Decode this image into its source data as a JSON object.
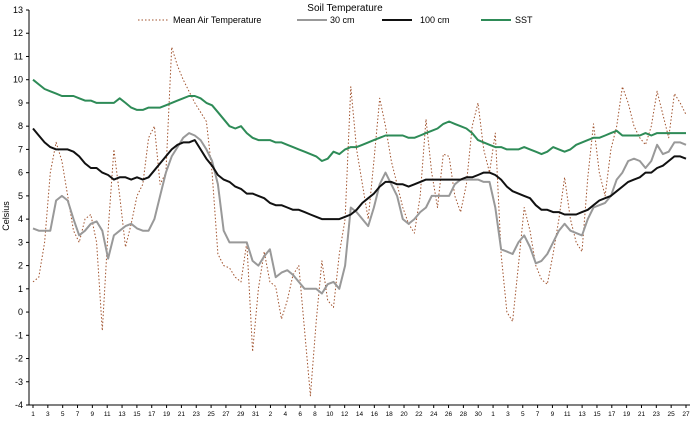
{
  "chart_data": {
    "type": "line",
    "title": "Soil Temperature",
    "xlabel": "",
    "ylabel": "Celsius",
    "ylim": [
      -4,
      13
    ],
    "yticks": [
      -4,
      -3,
      -2,
      -1,
      0,
      1,
      2,
      3,
      4,
      5,
      6,
      7,
      8,
      9,
      10,
      11,
      12,
      13
    ],
    "grid": false,
    "legend_position": "top",
    "x_tick_labels": [
      "1",
      "3",
      "5",
      "7",
      "9",
      "11",
      "13",
      "15",
      "17",
      "19",
      "21",
      "23",
      "25",
      "27",
      "29",
      "31",
      "2",
      "4",
      "6",
      "8",
      "10",
      "12",
      "14",
      "16",
      "18",
      "20",
      "22",
      "24",
      "26",
      "28",
      "30",
      "1",
      "3",
      "5",
      "7",
      "9",
      "11",
      "13",
      "15",
      "17",
      "19",
      "21",
      "23",
      "25",
      "27"
    ],
    "series": [
      {
        "name": "Mean Air Temperature",
        "color": "#a0522d",
        "style": "dotted",
        "values": [
          1.3,
          1.5,
          3.0,
          6.0,
          7.3,
          6.5,
          5.0,
          3.5,
          3.0,
          4.0,
          4.2,
          3.0,
          -0.8,
          3.5,
          7.0,
          5.0,
          2.8,
          3.8,
          5.0,
          5.5,
          7.5,
          8.0,
          5.5,
          6.0,
          11.4,
          10.6,
          10.0,
          9.5,
          9.0,
          8.6,
          8.2,
          6.0,
          2.5,
          2.0,
          1.9,
          1.5,
          1.3,
          3.0,
          -1.7,
          1.0,
          2.6,
          1.3,
          1.1,
          -0.3,
          0.5,
          1.6,
          2.0,
          -0.8,
          -3.6,
          -0.4,
          2.2,
          0.5,
          0.2,
          2.5,
          4.0,
          9.7,
          7.0,
          5.5,
          4.0,
          6.5,
          9.2,
          8.0,
          6.5,
          5.5,
          4.5,
          3.8,
          3.4,
          5.0,
          8.3,
          6.0,
          4.5,
          6.8,
          6.7,
          5.0,
          4.3,
          5.5,
          8.0,
          9.0,
          7.0,
          6.0,
          7.7,
          2.5,
          0.0,
          -0.4,
          2.0,
          4.5,
          3.5,
          2.0,
          1.4,
          1.2,
          2.5,
          4.0,
          5.8,
          4.0,
          3.0,
          2.6,
          5.8,
          8.1,
          6.0,
          5.0,
          7.0,
          8.0,
          9.7,
          9.0,
          8.0,
          7.5,
          7.2,
          8.0,
          9.5,
          8.5,
          7.5,
          9.4,
          9.0,
          8.5
        ]
      },
      {
        "name": "30 cm",
        "color": "#999999",
        "style": "solid",
        "values": [
          3.6,
          3.5,
          3.5,
          3.5,
          4.8,
          5.0,
          4.8,
          4.0,
          3.3,
          3.5,
          3.8,
          3.9,
          3.5,
          2.3,
          3.3,
          3.5,
          3.7,
          3.8,
          3.6,
          3.5,
          3.5,
          4.0,
          5.0,
          6.0,
          6.7,
          7.1,
          7.5,
          7.7,
          7.6,
          7.4,
          7.0,
          6.5,
          5.5,
          3.5,
          3.0,
          3.0,
          3.0,
          3.0,
          2.2,
          2.0,
          2.4,
          2.7,
          1.5,
          1.7,
          1.8,
          1.6,
          1.3,
          1.0,
          1.0,
          1.0,
          0.8,
          1.2,
          1.3,
          1.0,
          2.0,
          4.5,
          4.3,
          4.0,
          3.7,
          4.5,
          5.5,
          6.0,
          5.5,
          5.0,
          4.0,
          3.8,
          4.0,
          4.3,
          4.5,
          5.0,
          5.0,
          5.0,
          5.0,
          5.5,
          5.7,
          5.7,
          5.7,
          5.7,
          5.6,
          5.6,
          4.5,
          2.7,
          2.6,
          2.5,
          3.0,
          3.3,
          2.8,
          2.1,
          2.2,
          2.5,
          3.0,
          3.5,
          3.8,
          3.5,
          3.4,
          3.3,
          4.0,
          4.5,
          4.6,
          4.7,
          5.0,
          5.7,
          6.0,
          6.5,
          6.6,
          6.5,
          6.2,
          6.5,
          7.2,
          6.8,
          6.9,
          7.3,
          7.3,
          7.2
        ]
      },
      {
        "name": "100 cm",
        "color": "#111111",
        "style": "solid",
        "values": [
          7.9,
          7.6,
          7.3,
          7.1,
          7.0,
          7.0,
          7.0,
          6.9,
          6.7,
          6.4,
          6.2,
          6.2,
          6.0,
          5.9,
          5.7,
          5.8,
          5.8,
          5.7,
          5.8,
          5.7,
          5.8,
          6.1,
          6.4,
          6.7,
          7.0,
          7.2,
          7.3,
          7.3,
          7.4,
          7.0,
          6.6,
          6.3,
          5.9,
          5.7,
          5.6,
          5.4,
          5.3,
          5.1,
          5.1,
          5.0,
          4.9,
          4.7,
          4.6,
          4.6,
          4.5,
          4.4,
          4.4,
          4.3,
          4.2,
          4.1,
          4.0,
          4.0,
          4.0,
          4.0,
          4.1,
          4.2,
          4.4,
          4.7,
          4.9,
          5.1,
          5.4,
          5.6,
          5.6,
          5.5,
          5.5,
          5.4,
          5.5,
          5.6,
          5.7,
          5.7,
          5.7,
          5.7,
          5.7,
          5.7,
          5.7,
          5.8,
          5.8,
          5.9,
          6.0,
          6.0,
          5.9,
          5.7,
          5.4,
          5.2,
          5.1,
          5.0,
          4.9,
          4.6,
          4.4,
          4.4,
          4.3,
          4.3,
          4.2,
          4.2,
          4.2,
          4.3,
          4.4,
          4.6,
          4.8,
          4.9,
          5.0,
          5.2,
          5.4,
          5.6,
          5.7,
          5.8,
          6.0,
          6.0,
          6.2,
          6.3,
          6.5,
          6.7,
          6.7,
          6.6
        ]
      },
      {
        "name": "SST",
        "color": "#2e8b57",
        "style": "solid",
        "values": [
          10.0,
          9.8,
          9.6,
          9.5,
          9.4,
          9.3,
          9.3,
          9.3,
          9.2,
          9.1,
          9.1,
          9.0,
          9.0,
          9.0,
          9.0,
          9.2,
          9.0,
          8.8,
          8.7,
          8.7,
          8.8,
          8.8,
          8.8,
          8.9,
          9.0,
          9.1,
          9.2,
          9.3,
          9.3,
          9.2,
          9.0,
          8.9,
          8.6,
          8.3,
          8.0,
          7.9,
          8.0,
          7.7,
          7.5,
          7.4,
          7.4,
          7.4,
          7.3,
          7.3,
          7.2,
          7.1,
          7.0,
          6.9,
          6.8,
          6.7,
          6.5,
          6.6,
          6.9,
          6.8,
          7.0,
          7.1,
          7.1,
          7.2,
          7.3,
          7.4,
          7.5,
          7.6,
          7.6,
          7.6,
          7.6,
          7.5,
          7.5,
          7.6,
          7.7,
          7.8,
          7.9,
          8.1,
          8.2,
          8.1,
          8.0,
          7.9,
          7.7,
          7.4,
          7.3,
          7.2,
          7.1,
          7.1,
          7.0,
          7.0,
          7.0,
          7.1,
          7.0,
          6.9,
          6.8,
          6.9,
          7.1,
          7.0,
          6.9,
          7.0,
          7.2,
          7.3,
          7.4,
          7.5,
          7.5,
          7.6,
          7.7,
          7.8,
          7.6,
          7.6,
          7.6,
          7.6,
          7.7,
          7.6,
          7.7,
          7.7,
          7.7,
          7.7,
          7.7,
          7.7
        ]
      }
    ]
  }
}
